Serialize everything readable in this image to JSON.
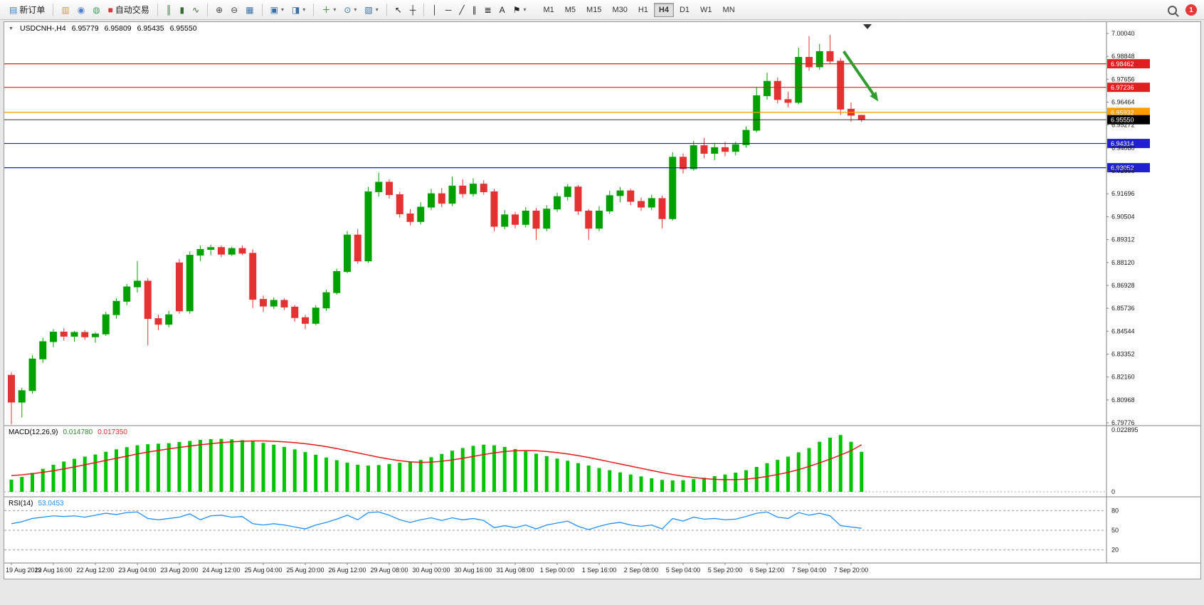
{
  "toolbar": {
    "groups": [
      [
        {
          "name": "new-order",
          "label": "新订单",
          "icon": "▤",
          "icon_color": "#3a7fc1"
        }
      ],
      [
        {
          "name": "market-watch",
          "icon": "▥",
          "icon_color": "#c9a227"
        },
        {
          "name": "navigator",
          "icon": "◉",
          "icon_color": "#4a7fd4"
        },
        {
          "name": "terminal",
          "icon": "◍",
          "icon_color": "#3aa55d"
        },
        {
          "name": "autotrading",
          "label": "自动交易",
          "icon": "■",
          "icon_color": "#d43c3c"
        }
      ],
      [
        {
          "name": "bar-chart",
          "icon": "║",
          "icon_color": "#356b35"
        },
        {
          "name": "candlestick-chart",
          "icon": "▮",
          "icon_color": "#356b35"
        },
        {
          "name": "line-chart",
          "icon": "∿",
          "icon_color": "#356b35"
        }
      ],
      [
        {
          "name": "zoom-in",
          "icon": "⊕",
          "icon_color": "#444444"
        },
        {
          "name": "zoom-out",
          "icon": "⊖",
          "icon_color": "#444444"
        },
        {
          "name": "tile-windows",
          "icon": "▦",
          "icon_color": "#3a6ea5"
        }
      ],
      [
        {
          "name": "auto-arrange",
          "icon": "▣",
          "icon_color": "#3a6ea5",
          "dropdown": true
        },
        {
          "name": "chart-shift",
          "icon": "◨",
          "icon_color": "#3a6ea5",
          "dropdown": true
        }
      ],
      [
        {
          "name": "indicators",
          "icon": "＋",
          "icon_color": "#2e8b2e",
          "dropdown": true
        },
        {
          "name": "periods",
          "icon": "⊙",
          "icon_color": "#3a6ea5",
          "dropdown": true
        },
        {
          "name": "templates",
          "icon": "▧",
          "icon_color": "#3a6ea5",
          "dropdown": true
        }
      ],
      [
        {
          "name": "cursor",
          "icon": "↖",
          "icon_color": "#222222"
        },
        {
          "name": "crosshair",
          "icon": "┼",
          "icon_color": "#222222"
        }
      ],
      [
        {
          "name": "vertical-line",
          "icon": "│",
          "icon_color": "#222222"
        },
        {
          "name": "horizontal-line",
          "icon": "─",
          "icon_color": "#222222"
        },
        {
          "name": "trendline",
          "icon": "╱",
          "icon_color": "#222222"
        },
        {
          "name": "equidistant-channel",
          "icon": "∥",
          "icon_color": "#222222"
        },
        {
          "name": "fibonacci",
          "icon": "≣",
          "icon_color": "#222222"
        },
        {
          "name": "text",
          "icon": "A",
          "icon_color": "#222222"
        },
        {
          "name": "arrows",
          "icon": "⚑",
          "icon_color": "#222222",
          "dropdown": true
        }
      ]
    ],
    "timeframes": {
      "items": [
        "M1",
        "M5",
        "M15",
        "M30",
        "H1",
        "H4",
        "D1",
        "W1",
        "MN"
      ],
      "active": "H4"
    },
    "notification_count": "1"
  },
  "chart_data": {
    "type": "candlestick",
    "header": {
      "expander": "▼",
      "symbol_period": "USDCNH-,H4",
      "open": "6.95779",
      "high": "6.95809",
      "low": "6.95435",
      "close": "6.95550"
    },
    "colors": {
      "up": "#00a000",
      "down": "#e23232",
      "macd_hist": "#00c400",
      "macd_signal": "#e81717",
      "rsi": "#1e90ff",
      "current_line": "#333333",
      "current_tag": "#000000",
      "arrow": "#2f9e2f"
    },
    "price_axis": [
      "7.00040",
      "6.98848",
      "6.97656",
      "6.96464",
      "6.95272",
      "6.94080",
      "6.92888",
      "6.91696",
      "6.90504",
      "6.89312",
      "6.88120",
      "6.86928",
      "6.85736",
      "6.84544",
      "6.83352",
      "6.82160",
      "6.80968",
      "6.79776"
    ],
    "time_labels": [
      "19 Aug 2022",
      "19 Aug 16:00",
      "22 Aug 12:00",
      "23 Aug 04:00",
      "23 Aug 20:00",
      "24 Aug 12:00",
      "25 Aug 04:00",
      "25 Aug 20:00",
      "26 Aug 12:00",
      "29 Aug 08:00",
      "30 Aug 00:00",
      "30 Aug 16:00",
      "31 Aug 08:00",
      "1 Sep 00:00",
      "1 Sep 16:00",
      "2 Sep 08:00",
      "5 Sep 04:00",
      "5 Sep 20:00",
      "6 Sep 12:00",
      "7 Sep 04:00",
      "7 Sep 20:00"
    ],
    "levels": [
      {
        "price": 6.98462,
        "label": "6.98462",
        "color": "#e02020"
      },
      {
        "price": 6.97236,
        "label": "6.97236",
        "color": "#e02020"
      },
      {
        "price": 6.95932,
        "label": "6.95932",
        "color": "#ff9c00"
      },
      {
        "price": 6.94314,
        "label": "6.94314",
        "color": "#2020d0"
      },
      {
        "price": 6.93052,
        "label": "6.93052",
        "color": "#2020d0"
      }
    ],
    "current_price": {
      "value": 6.9555,
      "label": "6.95550"
    },
    "arrow": {
      "from": {
        "i": 79.3,
        "price": 6.9911
      },
      "to": {
        "i": 82.6,
        "price": 6.965
      }
    },
    "candles": [
      [
        6.8225,
        6.824,
        6.797,
        6.8085
      ],
      [
        6.8085,
        6.816,
        6.8005,
        6.8145
      ],
      [
        6.8145,
        6.833,
        6.813,
        6.831
      ],
      [
        6.831,
        6.842,
        6.829,
        6.84
      ],
      [
        6.84,
        6.8465,
        6.837,
        6.845
      ],
      [
        6.845,
        6.847,
        6.8405,
        6.8428
      ],
      [
        6.8428,
        6.8455,
        6.84,
        6.8448
      ],
      [
        6.8448,
        6.846,
        6.841,
        6.8425
      ],
      [
        6.8425,
        6.845,
        6.8395,
        6.844
      ],
      [
        6.844,
        6.8555,
        6.843,
        6.854
      ],
      [
        6.854,
        6.8625,
        6.852,
        6.861
      ],
      [
        6.861,
        6.87,
        6.859,
        6.8685
      ],
      [
        6.8685,
        6.882,
        6.8655,
        6.8715
      ],
      [
        6.8715,
        6.873,
        6.838,
        6.852
      ],
      [
        6.852,
        6.854,
        6.846,
        6.849
      ],
      [
        6.849,
        6.856,
        6.8475,
        6.854
      ],
      [
        6.881,
        6.883,
        6.8545,
        6.856
      ],
      [
        6.856,
        6.887,
        6.8545,
        6.885
      ],
      [
        6.885,
        6.89,
        6.882,
        6.888
      ],
      [
        6.888,
        6.8905,
        6.885,
        6.889
      ],
      [
        6.889,
        6.89,
        6.884,
        6.8855
      ],
      [
        6.8855,
        6.8895,
        6.8845,
        6.8885
      ],
      [
        6.8885,
        6.89,
        6.885,
        6.886
      ],
      [
        6.886,
        6.888,
        6.8575,
        6.862
      ],
      [
        6.862,
        6.864,
        6.8555,
        6.8585
      ],
      [
        6.8585,
        6.863,
        6.857,
        6.8615
      ],
      [
        6.8615,
        6.8625,
        6.8565,
        6.858
      ],
      [
        6.858,
        6.859,
        6.8505,
        6.8525
      ],
      [
        6.8525,
        6.854,
        6.8465,
        6.8495
      ],
      [
        6.8495,
        6.859,
        6.8485,
        6.8575
      ],
      [
        6.8575,
        6.867,
        6.856,
        6.8655
      ],
      [
        6.8655,
        6.878,
        6.8645,
        6.8765
      ],
      [
        6.8765,
        6.8975,
        6.8755,
        6.8955
      ],
      [
        6.8955,
        6.8985,
        6.8805,
        6.882
      ],
      [
        6.882,
        6.9205,
        6.881,
        6.918
      ],
      [
        6.918,
        6.928,
        6.9155,
        6.923
      ],
      [
        6.923,
        6.9245,
        6.9145,
        6.9165
      ],
      [
        6.9165,
        6.918,
        6.9045,
        6.9065
      ],
      [
        6.9065,
        6.909,
        6.9005,
        6.9025
      ],
      [
        6.9025,
        6.9125,
        6.901,
        6.91
      ],
      [
        6.91,
        6.9195,
        6.9085,
        6.917
      ],
      [
        6.917,
        6.92,
        6.91,
        6.912
      ],
      [
        6.912,
        6.926,
        6.9105,
        6.921
      ],
      [
        6.921,
        6.9245,
        6.915,
        6.917
      ],
      [
        6.917,
        6.925,
        6.9155,
        6.922
      ],
      [
        6.922,
        6.924,
        6.9165,
        6.918
      ],
      [
        6.918,
        6.9195,
        6.8975,
        6.9
      ],
      [
        6.9,
        6.9085,
        6.8985,
        6.906
      ],
      [
        6.906,
        6.9075,
        6.899,
        6.901
      ],
      [
        6.901,
        6.91,
        6.8995,
        6.908
      ],
      [
        6.908,
        6.9095,
        6.893,
        6.899
      ],
      [
        6.899,
        6.911,
        6.8975,
        6.909
      ],
      [
        6.909,
        6.9175,
        6.9075,
        6.9155
      ],
      [
        6.9155,
        6.922,
        6.9135,
        6.9205
      ],
      [
        6.9205,
        6.9215,
        6.906,
        6.908
      ],
      [
        6.908,
        6.909,
        6.893,
        6.899
      ],
      [
        6.899,
        6.9105,
        6.8975,
        6.908
      ],
      [
        6.908,
        6.9185,
        6.9065,
        6.916
      ],
      [
        6.916,
        6.9205,
        6.9125,
        6.9185
      ],
      [
        6.9185,
        6.9195,
        6.911,
        6.913
      ],
      [
        6.913,
        6.915,
        6.908,
        6.91
      ],
      [
        6.91,
        6.9165,
        6.9085,
        6.9145
      ],
      [
        6.9145,
        6.916,
        6.899,
        6.904
      ],
      [
        6.904,
        6.9385,
        6.903,
        6.936
      ],
      [
        6.936,
        6.938,
        6.9275,
        6.93
      ],
      [
        6.93,
        6.9445,
        6.929,
        6.942
      ],
      [
        6.942,
        6.946,
        6.9355,
        6.938
      ],
      [
        6.938,
        6.9435,
        6.9345,
        6.941
      ],
      [
        6.941,
        6.944,
        6.9365,
        6.939
      ],
      [
        6.939,
        6.944,
        6.937,
        6.9425
      ],
      [
        6.9425,
        6.952,
        6.941,
        6.95
      ],
      [
        6.95,
        6.9725,
        6.949,
        6.968
      ],
      [
        6.968,
        6.98,
        6.966,
        6.9755
      ],
      [
        6.9755,
        6.9775,
        6.964,
        6.966
      ],
      [
        6.966,
        6.97,
        6.962,
        6.9645
      ],
      [
        6.9645,
        6.993,
        6.9635,
        6.988
      ],
      [
        6.988,
        6.999,
        6.981,
        6.983
      ],
      [
        6.983,
        6.995,
        6.9815,
        6.991
      ],
      [
        6.991,
        6.9995,
        6.9845,
        6.986
      ],
      [
        6.986,
        6.9875,
        6.958,
        6.961
      ],
      [
        6.961,
        6.9645,
        6.9545,
        6.9578
      ],
      [
        6.95779,
        6.95809,
        6.95435,
        6.9555
      ]
    ],
    "indicators": {
      "macd": {
        "label": "MACD(12,26,9)",
        "value": "0.014780",
        "signal_value": "0.017350",
        "axis_max": "0.022895",
        "axis_max_value": 0.022895,
        "axis_min": "0",
        "histogram": [
          0.0045,
          0.0055,
          0.007,
          0.0085,
          0.01,
          0.0112,
          0.0122,
          0.013,
          0.0138,
          0.0148,
          0.0157,
          0.0165,
          0.0172,
          0.0176,
          0.0178,
          0.018,
          0.0184,
          0.0188,
          0.0192,
          0.0195,
          0.0196,
          0.0194,
          0.0191,
          0.0187,
          0.0181,
          0.0174,
          0.0166,
          0.0157,
          0.0147,
          0.0137,
          0.0127,
          0.0117,
          0.0108,
          0.01,
          0.0097,
          0.0099,
          0.0103,
          0.0108,
          0.0112,
          0.0118,
          0.0128,
          0.014,
          0.0152,
          0.0162,
          0.017,
          0.0174,
          0.0172,
          0.0166,
          0.0158,
          0.015,
          0.0141,
          0.0132,
          0.0123,
          0.0115,
          0.0106,
          0.0097,
          0.0088,
          0.008,
          0.0072,
          0.0064,
          0.0057,
          0.005,
          0.0044,
          0.0042,
          0.0043,
          0.0047,
          0.0052,
          0.0058,
          0.0064,
          0.0071,
          0.008,
          0.0092,
          0.0106,
          0.0118,
          0.013,
          0.0146,
          0.0162,
          0.0185,
          0.02,
          0.021,
          0.0185,
          0.0148
        ],
        "signal": [
          0.006,
          0.0063,
          0.0067,
          0.0072,
          0.0078,
          0.0085,
          0.0092,
          0.01,
          0.0108,
          0.0116,
          0.0124,
          0.0132,
          0.014,
          0.0147,
          0.0153,
          0.0159,
          0.0164,
          0.0169,
          0.0174,
          0.0178,
          0.0182,
          0.0185,
          0.0187,
          0.0188,
          0.0188,
          0.0187,
          0.0185,
          0.0182,
          0.0178,
          0.0173,
          0.0167,
          0.016,
          0.0152,
          0.0144,
          0.0136,
          0.0128,
          0.0121,
          0.0115,
          0.0111,
          0.0109,
          0.011,
          0.0113,
          0.0118,
          0.0124,
          0.0131,
          0.0138,
          0.0144,
          0.0149,
          0.0152,
          0.0153,
          0.0152,
          0.0149,
          0.0145,
          0.014,
          0.0134,
          0.0127,
          0.0119,
          0.0111,
          0.0103,
          0.0095,
          0.0087,
          0.0079,
          0.0071,
          0.0064,
          0.0058,
          0.0053,
          0.0049,
          0.0046,
          0.0045,
          0.0045,
          0.0047,
          0.0051,
          0.0057,
          0.0064,
          0.0072,
          0.0082,
          0.0094,
          0.0107,
          0.0121,
          0.0136,
          0.0152,
          0.0174
        ]
      },
      "rsi": {
        "label": "RSI(14)",
        "value": "53.0453",
        "levels": [
          80,
          50,
          20
        ],
        "range": [
          0,
          100
        ],
        "series": [
          60,
          63,
          68,
          70,
          72,
          71,
          72,
          70,
          73,
          76,
          74,
          77,
          78,
          68,
          66,
          68,
          70,
          75,
          66,
          72,
          73,
          70,
          71,
          60,
          58,
          60,
          58,
          55,
          52,
          58,
          62,
          67,
          73,
          66,
          77,
          78,
          73,
          66,
          62,
          66,
          69,
          65,
          69,
          66,
          68,
          65,
          54,
          57,
          54,
          58,
          52,
          58,
          61,
          64,
          56,
          51,
          56,
          60,
          62,
          58,
          56,
          58,
          52,
          68,
          64,
          70,
          67,
          68,
          66,
          67,
          71,
          76,
          78,
          70,
          68,
          77,
          73,
          76,
          72,
          57,
          55,
          53.05
        ]
      }
    }
  }
}
